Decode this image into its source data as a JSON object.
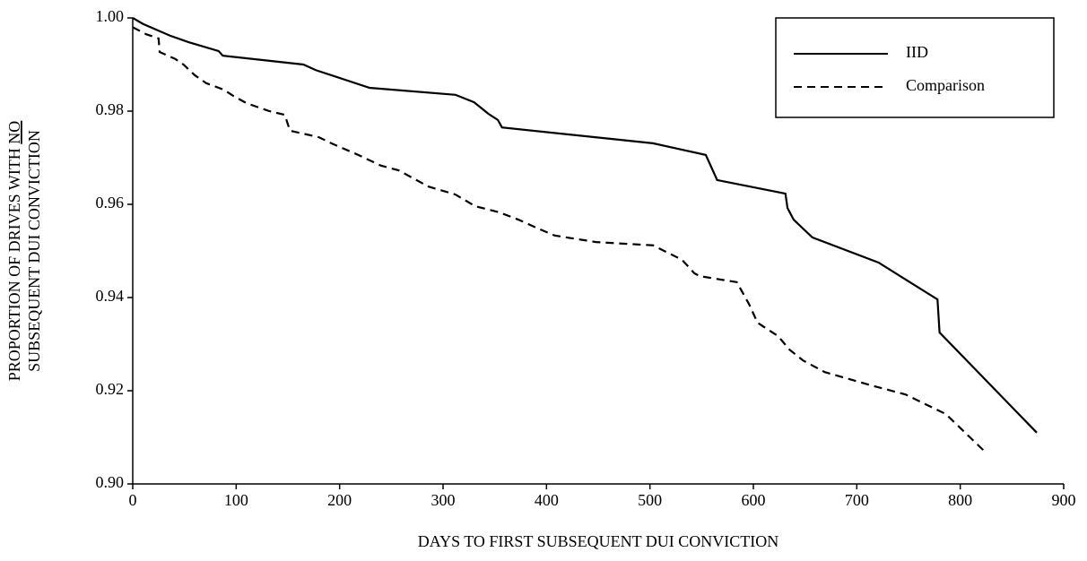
{
  "chart_data": {
    "type": "line",
    "x_label": "DAYS TO FIRST SUBSEQUENT DUI CONVICTION",
    "y_label": {
      "line1": "PROPORTION OF DRIVES WITH",
      "emphasis": "NO",
      "line2": "SUBSEQUENT DUI CONVICTION"
    },
    "xlim": [
      0,
      900
    ],
    "xticks": [
      0,
      100,
      200,
      300,
      400,
      500,
      600,
      700,
      800,
      900
    ],
    "ylim": [
      0.9,
      1.0
    ],
    "yticks": [
      {
        "value": 0.9,
        "label": "0.90"
      },
      0.92,
      0.94,
      0.96,
      0.98,
      {
        "value": 1.0,
        "label": "1.00"
      }
    ],
    "legend": "top-right",
    "series": [
      {
        "name": "IID",
        "color": "#000000",
        "dash": "solid",
        "x": [
          0,
          10,
          36,
          54,
          83,
          87,
          165,
          177,
          229,
          312,
          330,
          344,
          353,
          357,
          503,
          554,
          565,
          631,
          633,
          639,
          657,
          721,
          778,
          780,
          874
        ],
        "values": [
          1.0,
          0.9987,
          0.9962,
          0.9948,
          0.9929,
          0.9919,
          0.99,
          0.9888,
          0.985,
          0.9835,
          0.9819,
          0.9794,
          0.9781,
          0.9765,
          0.9731,
          0.9706,
          0.9652,
          0.9623,
          0.9592,
          0.9567,
          0.9529,
          0.9475,
          0.9396,
          0.9325,
          0.911
        ]
      },
      {
        "name": "Comparison",
        "color": "#000000",
        "dash": "dashed",
        "x": [
          0,
          13,
          25,
          26,
          41,
          49,
          60,
          71,
          88,
          97,
          110,
          132,
          147,
          152,
          180,
          192,
          218,
          240,
          257,
          286,
          312,
          331,
          354,
          373,
          392,
          408,
          448,
          503,
          531,
          543,
          548,
          570,
          584,
          596,
          604,
          624,
          635,
          648,
          669,
          713,
          747,
          786,
          823
        ],
        "values": [
          0.998,
          0.9965,
          0.9956,
          0.9927,
          0.9912,
          0.99,
          0.9877,
          0.986,
          0.9846,
          0.9833,
          0.9817,
          0.98,
          0.9792,
          0.9758,
          0.9744,
          0.9731,
          0.9706,
          0.9683,
          0.9673,
          0.9638,
          0.9621,
          0.9596,
          0.9583,
          0.9567,
          0.9548,
          0.9533,
          0.9519,
          0.9512,
          0.9481,
          0.9452,
          0.9446,
          0.9438,
          0.9433,
          0.9385,
          0.9346,
          0.9317,
          0.9288,
          0.9265,
          0.924,
          0.9212,
          0.9192,
          0.915,
          0.9071
        ]
      }
    ]
  }
}
